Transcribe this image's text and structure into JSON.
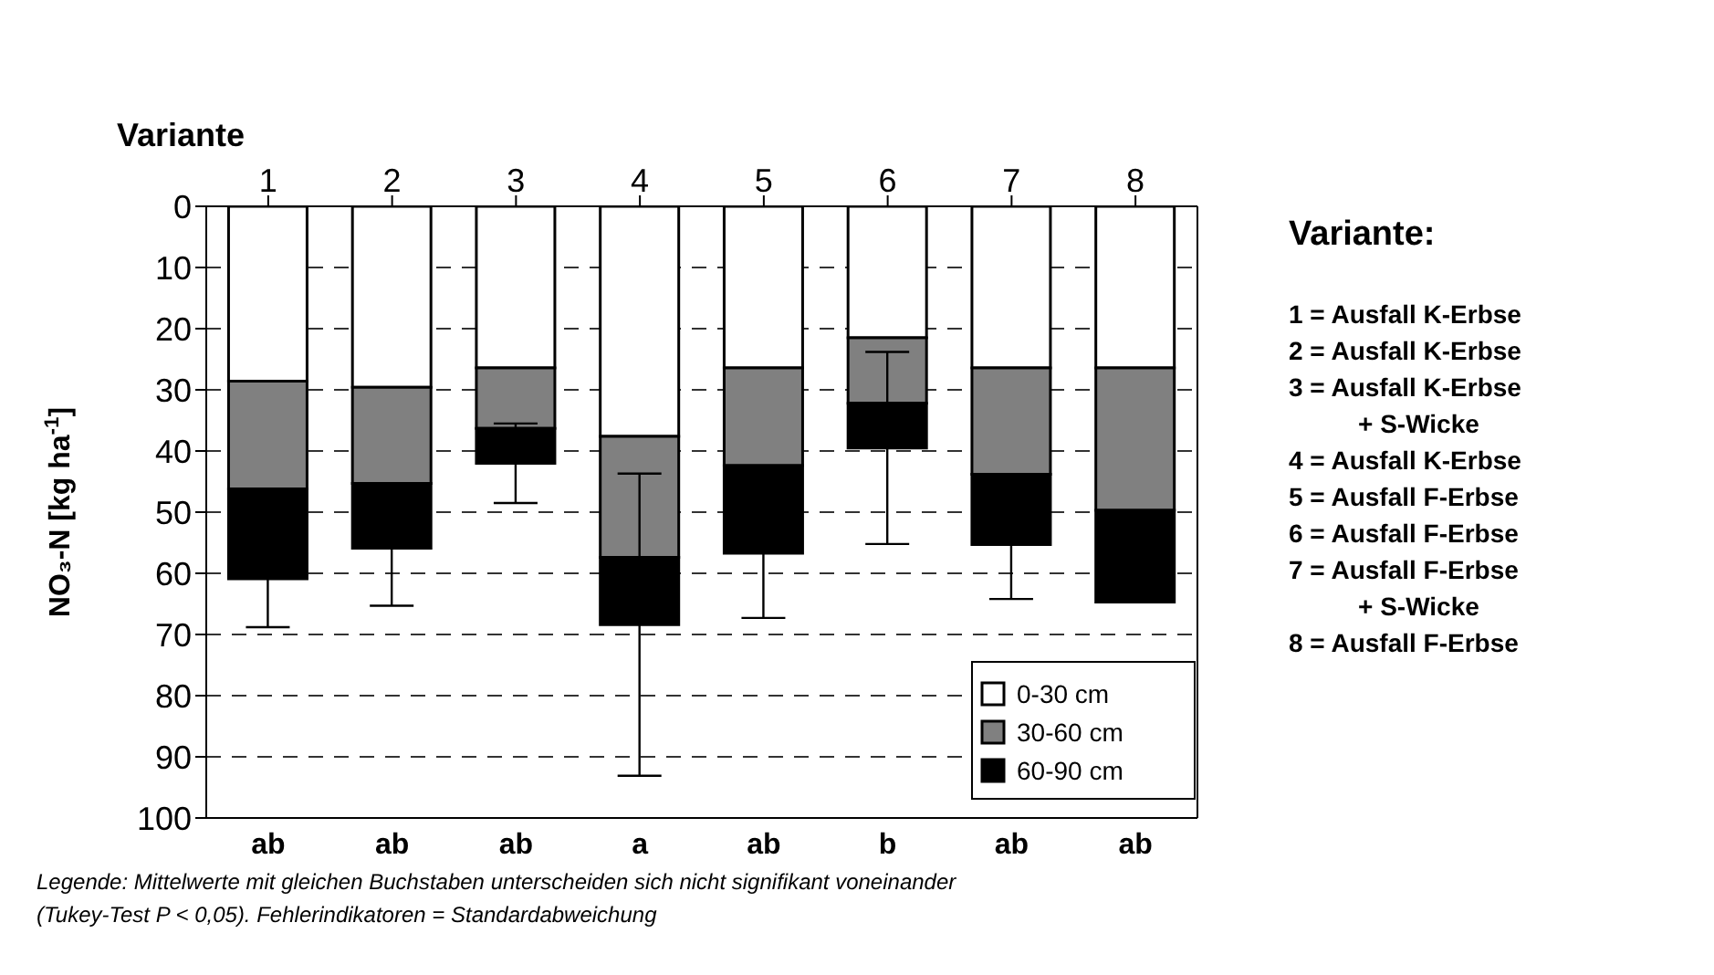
{
  "chart_data": {
    "type": "bar",
    "stacked": true,
    "xlabel": "Variante",
    "ylabel": "NO₃-N [kg ha$^{-1}$]",
    "categories": [
      "1",
      "2",
      "3",
      "4",
      "5",
      "6",
      "7",
      "8"
    ],
    "series": [
      {
        "name": "0-30 cm",
        "color": "#ffffff",
        "values": [
          28.6,
          29.6,
          26.4,
          37.6,
          26.4,
          21.5,
          26.4,
          26.4
        ]
      },
      {
        "name": "30-60 cm",
        "color": "#808080",
        "values": [
          17.6,
          15.7,
          9.9,
          19.8,
          16.0,
          10.7,
          17.4,
          23.3
        ]
      },
      {
        "name": "60-90 cm",
        "color": "#000000",
        "values": [
          14.7,
          10.6,
          5.7,
          11.0,
          14.3,
          7.3,
          11.5,
          15.0
        ],
        "errors": [
          7.9,
          9.4,
          6.5,
          24.7,
          10.6,
          15.7,
          8.9,
          null
        ]
      }
    ],
    "ylim": [
      100,
      0
    ],
    "yticks": [
      0,
      10,
      20,
      30,
      40,
      50,
      60,
      70,
      80,
      90,
      100
    ],
    "grid": "y",
    "legend": "bottom right",
    "annotations": [
      "ab",
      "ab",
      "ab",
      "a",
      "ab",
      "b",
      "ab",
      "ab",
      "Variante:",
      "1 = Ausfall K-Erbse",
      "2 = Ausfall K-Erbse",
      "3 = Ausfall K-Erbse\n+ S-Wicke",
      "4 = Ausfall K-Erbse",
      "5 = Ausfall F-Erbse",
      "6 = Ausfall F-Erbse",
      "7 = Ausfall F-Erbse\n+ S-Wicke",
      "8 = Ausfall F-Erbse",
      "Legende: Mittelwerte mit gleichen Buchstaben unterscheiden sich nicht signifikant voneinander",
      "(Tukey-Test P < 0,05). Fehlerindikatoren = Standardabweichung"
    ]
  }
}
